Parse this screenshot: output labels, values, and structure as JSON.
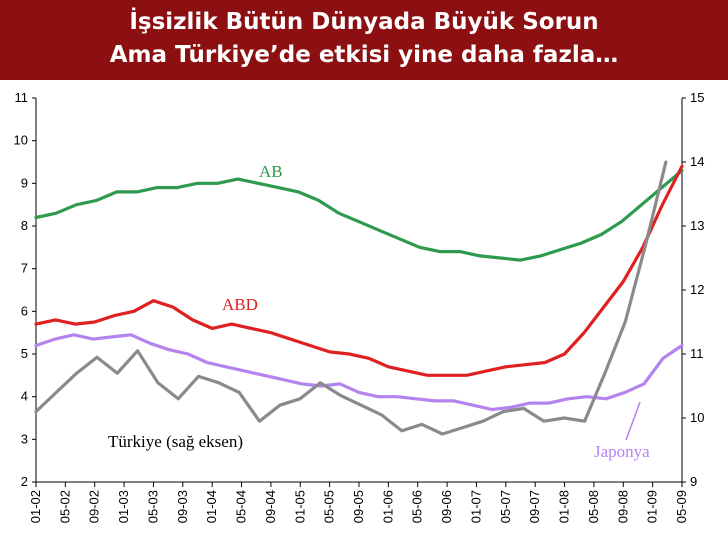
{
  "slide": {
    "title_line1": "İşsizlik Bütün Dünyada Büyük Sorun",
    "title_line2": "Ama Türkiye’de etkisi yine daha fazla…",
    "banner_color": "#8c0f12"
  },
  "chart_data": {
    "type": "line",
    "x_labels": [
      "01-02",
      "05-02",
      "09-02",
      "01-03",
      "05-03",
      "09-03",
      "01-04",
      "05-04",
      "09-04",
      "01-05",
      "05-05",
      "09-05",
      "01-06",
      "05-06",
      "09-06",
      "01-07",
      "05-07",
      "09-07",
      "01-08",
      "05-08",
      "09-08",
      "01-09",
      "05-09"
    ],
    "left_axis": {
      "ylim": [
        2,
        11
      ],
      "ticks": [
        2,
        3,
        4,
        5,
        6,
        7,
        8,
        9,
        10,
        11
      ]
    },
    "right_axis": {
      "ylim": [
        9,
        15
      ],
      "ticks": [
        9,
        10,
        11,
        12,
        13,
        14,
        15
      ]
    },
    "series": [
      {
        "name": "AB",
        "axis": "left",
        "color": "#2e9a4e",
        "values": [
          8.2,
          8.3,
          8.5,
          8.6,
          8.8,
          8.8,
          8.9,
          8.9,
          9.0,
          9.0,
          9.1,
          9.0,
          8.9,
          8.8,
          8.6,
          8.3,
          8.1,
          7.9,
          7.7,
          7.5,
          7.4,
          7.4,
          7.3,
          7.25,
          7.2,
          7.3,
          7.45,
          7.6,
          7.8,
          8.1,
          8.5,
          8.9,
          9.3
        ]
      },
      {
        "name": "ABD",
        "axis": "left",
        "color": "#e02020",
        "values": [
          5.7,
          5.8,
          5.7,
          5.75,
          5.9,
          6.0,
          6.25,
          6.1,
          5.8,
          5.6,
          5.7,
          5.6,
          5.5,
          5.35,
          5.2,
          5.05,
          5.0,
          4.9,
          4.7,
          4.6,
          4.5,
          4.5,
          4.5,
          4.6,
          4.7,
          4.75,
          4.8,
          5.0,
          5.5,
          6.1,
          6.7,
          7.5,
          8.5,
          9.4
        ]
      },
      {
        "name": "Japonya",
        "axis": "left",
        "color": "#b583f0",
        "values": [
          5.2,
          5.35,
          5.45,
          5.35,
          5.4,
          5.45,
          5.25,
          5.1,
          5.0,
          4.8,
          4.7,
          4.6,
          4.5,
          4.4,
          4.3,
          4.25,
          4.3,
          4.1,
          4.0,
          4.0,
          3.95,
          3.9,
          3.9,
          3.8,
          3.7,
          3.75,
          3.85,
          3.85,
          3.95,
          4.0,
          3.95,
          4.1,
          4.3,
          4.9,
          5.2
        ]
      },
      {
        "name": "Türkiye (sağ eksen)",
        "axis": "right",
        "color": "#8a8a8a",
        "values": [
          10.1,
          10.4,
          10.7,
          10.95,
          10.7,
          11.05,
          10.55,
          10.3,
          10.65,
          10.55,
          10.4,
          9.95,
          10.2,
          10.3,
          10.55,
          10.35,
          10.2,
          10.05,
          9.8,
          9.9,
          9.75,
          9.85,
          9.95,
          10.1,
          10.15,
          9.95,
          10.0,
          9.95,
          10.7,
          11.5,
          12.7,
          14.0
        ]
      }
    ],
    "annotations": [
      {
        "text": "AB",
        "color": "#2e9a4e"
      },
      {
        "text": "ABD",
        "color": "#e02020"
      },
      {
        "text": "Türkiye (sağ eksen)",
        "color": "#000000"
      },
      {
        "text": "Japonya",
        "color": "#b583f0"
      }
    ],
    "grid": false,
    "legend": "none"
  }
}
